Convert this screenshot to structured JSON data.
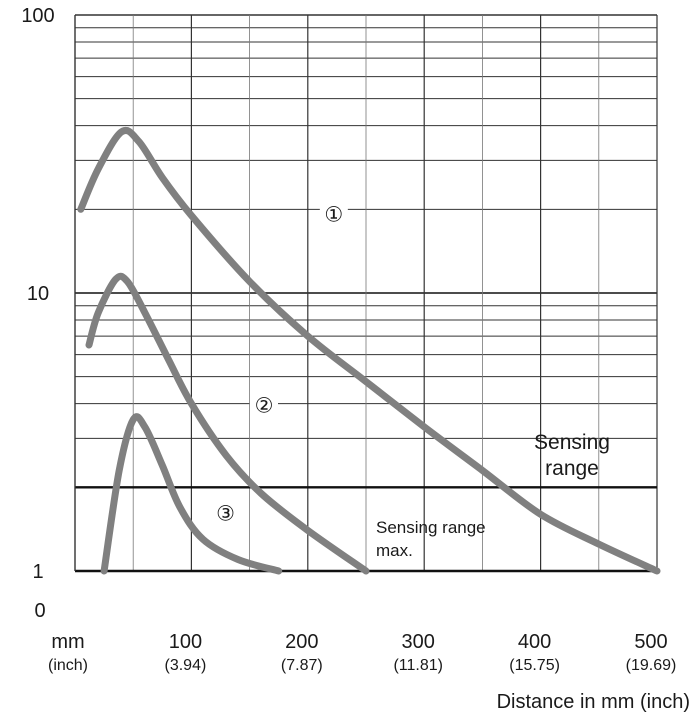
{
  "chart_data": {
    "type": "line",
    "title": "",
    "xlabel": "Distance in mm (inch)",
    "ylabel": "",
    "x_unit_label": "mm",
    "x_unit_sub_label": "(inch)",
    "xlim": [
      0,
      500
    ],
    "ylim": [
      1,
      100
    ],
    "y_scale": "log",
    "grid": true,
    "x_ticks": [
      {
        "value": 100,
        "label": "100",
        "sub": "(3.94)"
      },
      {
        "value": 200,
        "label": "200",
        "sub": "(7.87)"
      },
      {
        "value": 300,
        "label": "300",
        "sub": "(11.81)"
      },
      {
        "value": 400,
        "label": "400",
        "sub": "(15.75)"
      },
      {
        "value": 500,
        "label": "500",
        "sub": "(19.69)"
      }
    ],
    "y_ticks": [
      {
        "value": 100,
        "label": "100"
      },
      {
        "value": 10,
        "label": "10"
      },
      {
        "value": 1,
        "label": "1"
      }
    ],
    "y_zero_label": "0",
    "reference_lines": [
      {
        "y": 2,
        "label": "Sensing range"
      },
      {
        "y": 1,
        "label": "Sensing range max."
      }
    ],
    "series": [
      {
        "marker": "①",
        "points": [
          [
            5,
            20
          ],
          [
            20,
            28
          ],
          [
            40,
            38
          ],
          [
            55,
            35
          ],
          [
            75,
            26
          ],
          [
            100,
            19
          ],
          [
            150,
            11
          ],
          [
            200,
            7
          ],
          [
            250,
            4.8
          ],
          [
            300,
            3.3
          ],
          [
            350,
            2.3
          ],
          [
            400,
            1.6
          ],
          [
            450,
            1.25
          ],
          [
            500,
            1.0
          ]
        ]
      },
      {
        "marker": "②",
        "points": [
          [
            12,
            6.5
          ],
          [
            20,
            8.5
          ],
          [
            35,
            11.2
          ],
          [
            45,
            11.0
          ],
          [
            60,
            8.5
          ],
          [
            80,
            5.8
          ],
          [
            100,
            4.0
          ],
          [
            130,
            2.6
          ],
          [
            160,
            1.9
          ],
          [
            200,
            1.4
          ],
          [
            250,
            1.0
          ]
        ]
      },
      {
        "marker": "③",
        "points": [
          [
            25,
            1.0
          ],
          [
            38,
            2.3
          ],
          [
            50,
            3.5
          ],
          [
            60,
            3.3
          ],
          [
            75,
            2.4
          ],
          [
            90,
            1.7
          ],
          [
            110,
            1.3
          ],
          [
            140,
            1.1
          ],
          [
            175,
            1.0
          ]
        ]
      }
    ],
    "series_color": "#808080"
  }
}
